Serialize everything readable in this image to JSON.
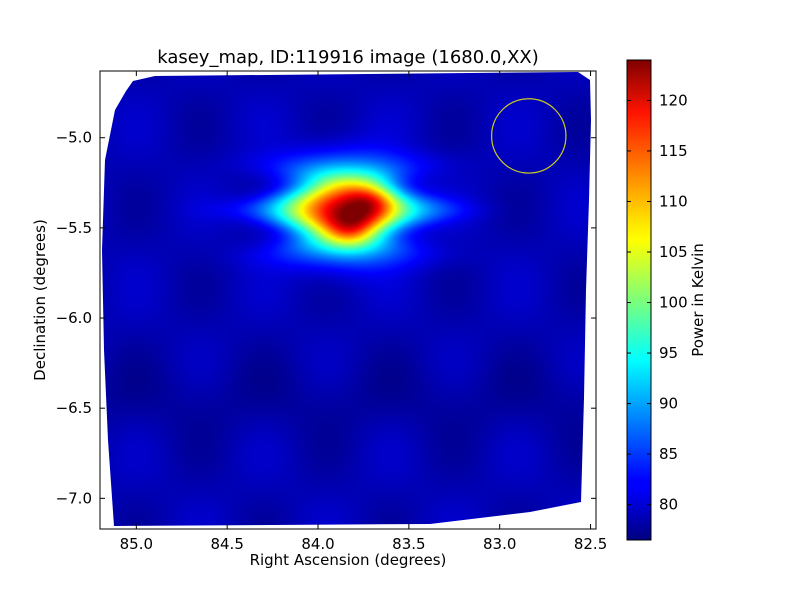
{
  "chart_data": {
    "type": "heatmap",
    "title": "kasey_map, ID:119916 image (1680.0,XX)",
    "xlabel": "Right Ascension (degrees)",
    "ylabel": "Declination (degrees)",
    "xlim": [
      85.2,
      82.47
    ],
    "ylim": [
      -7.17,
      -4.63
    ],
    "x_inverted": true,
    "x_ticks": [
      {
        "value": 85.0,
        "label": "85.0"
      },
      {
        "value": 84.5,
        "label": "84.5"
      },
      {
        "value": 84.0,
        "label": "84.0"
      },
      {
        "value": 83.5,
        "label": "83.5"
      },
      {
        "value": 83.0,
        "label": "83.0"
      },
      {
        "value": 82.5,
        "label": "82.5"
      }
    ],
    "y_ticks": [
      {
        "value": -5.0,
        "label": "−5.0"
      },
      {
        "value": -5.5,
        "label": "−5.5"
      },
      {
        "value": -6.0,
        "label": "−6.0"
      },
      {
        "value": -6.5,
        "label": "−6.5"
      },
      {
        "value": -7.0,
        "label": "−7.0"
      }
    ],
    "colorbar": {
      "label": "Power in Kelvin",
      "colormap": "jet",
      "min": 76.5,
      "max": 124,
      "ticks": [
        {
          "value": 80,
          "label": "80"
        },
        {
          "value": 85,
          "label": "85"
        },
        {
          "value": 90,
          "label": "90"
        },
        {
          "value": 95,
          "label": "95"
        },
        {
          "value": 100,
          "label": "100"
        },
        {
          "value": 105,
          "label": "105"
        },
        {
          "value": 110,
          "label": "110"
        },
        {
          "value": 115,
          "label": "115"
        },
        {
          "value": 120,
          "label": "120"
        }
      ]
    },
    "background_level": 79,
    "sources": [
      {
        "ra": 83.85,
        "dec": -5.4,
        "peak": 123
      },
      {
        "ra": 83.7,
        "dec": -5.35,
        "peak": 119
      },
      {
        "ra": 83.82,
        "dec": -5.5,
        "peak": 118
      }
    ],
    "beam_circle": {
      "ra": 82.84,
      "dec": -4.99,
      "radius_deg": 0.31,
      "color": "#cccc22"
    },
    "grid": false
  }
}
